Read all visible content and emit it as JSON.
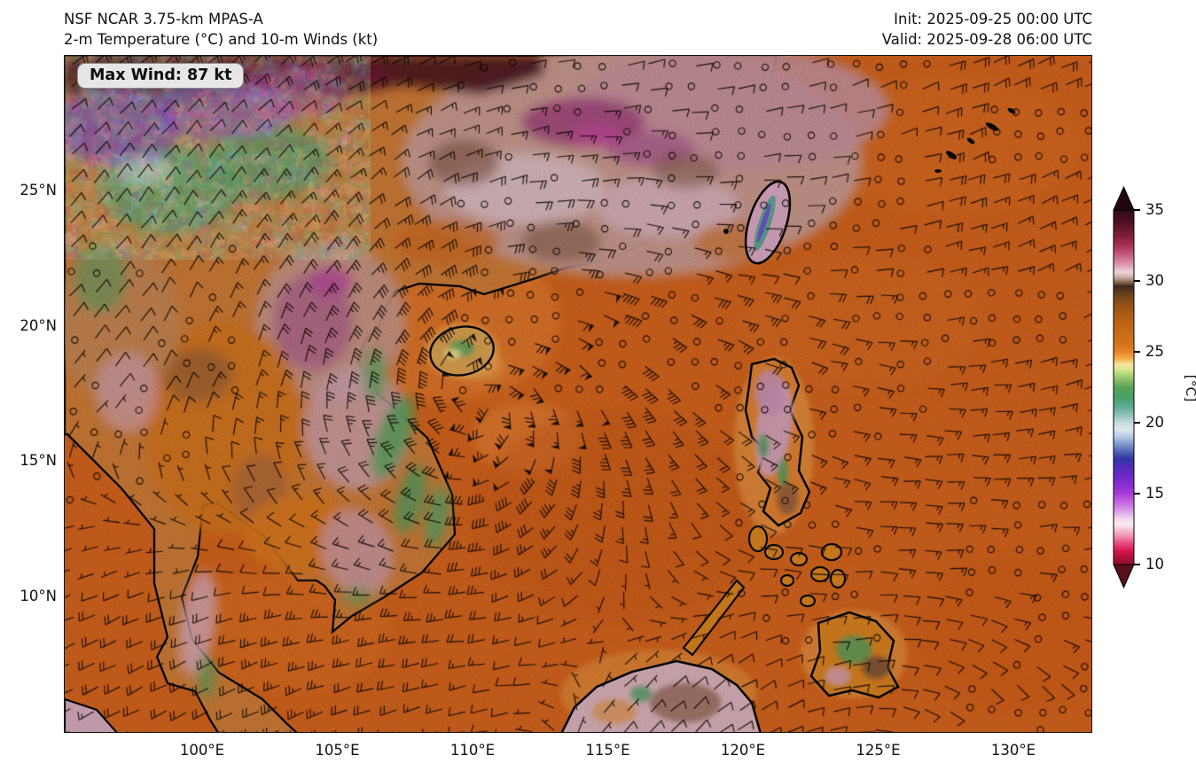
{
  "header": {
    "title_line1": "NSF NCAR 3.75-km MPAS-A",
    "title_line2": "2-m Temperature (°C) and 10-m Winds (kt)",
    "init_label": "Init: 2025-09-25 00:00 UTC",
    "valid_label": "Valid: 2025-09-28 06:00 UTC"
  },
  "map": {
    "max_wind_label": "Max Wind: 87 kt"
  },
  "axes": {
    "lat_ticks": [
      "25°N",
      "20°N",
      "15°N",
      "10°N"
    ],
    "lon_ticks": [
      "100°E",
      "105°E",
      "110°E",
      "115°E",
      "120°E",
      "125°E",
      "130°E"
    ]
  },
  "colorbar": {
    "tick_labels": [
      "35",
      "30",
      "25",
      "20",
      "15",
      "10"
    ],
    "tick_values": [
      35,
      30,
      25,
      20,
      15,
      10
    ],
    "min": 10,
    "max": 35,
    "unit_label": "[°C]",
    "extend_over_color": "#200810",
    "extend_under_color": "#58101c",
    "stops": [
      {
        "o": 0.0,
        "c": "#2e0a14"
      },
      {
        "o": 0.03,
        "c": "#4a1020"
      },
      {
        "o": 0.07,
        "c": "#7c1c38"
      },
      {
        "o": 0.1,
        "c": "#a83054"
      },
      {
        "o": 0.13,
        "c": "#c86488"
      },
      {
        "o": 0.155,
        "c": "#dc9cb0"
      },
      {
        "o": 0.175,
        "c": "#ecd4d8"
      },
      {
        "o": 0.19,
        "c": "#c8ac9c"
      },
      {
        "o": 0.205,
        "c": "#84604c"
      },
      {
        "o": 0.215,
        "c": "#3c2820"
      },
      {
        "o": 0.23,
        "c": "#5c3a1e"
      },
      {
        "o": 0.26,
        "c": "#8c4e16"
      },
      {
        "o": 0.3,
        "c": "#b05e14"
      },
      {
        "o": 0.34,
        "c": "#c66a16"
      },
      {
        "o": 0.38,
        "c": "#d4741c"
      },
      {
        "o": 0.4,
        "c": "#e88428"
      },
      {
        "o": 0.42,
        "c": "#f4b04c"
      },
      {
        "o": 0.435,
        "c": "#f4e49c"
      },
      {
        "o": 0.45,
        "c": "#d8e890"
      },
      {
        "o": 0.47,
        "c": "#a0cc70"
      },
      {
        "o": 0.5,
        "c": "#58a455"
      },
      {
        "o": 0.53,
        "c": "#48a068"
      },
      {
        "o": 0.555,
        "c": "#5caa96"
      },
      {
        "o": 0.58,
        "c": "#94c4bc"
      },
      {
        "o": 0.6,
        "c": "#c4dcdc"
      },
      {
        "o": 0.62,
        "c": "#dce8f0"
      },
      {
        "o": 0.64,
        "c": "#b4c8e4"
      },
      {
        "o": 0.66,
        "c": "#8099cc"
      },
      {
        "o": 0.685,
        "c": "#4c5cb4"
      },
      {
        "o": 0.7,
        "c": "#3438a4"
      },
      {
        "o": 0.72,
        "c": "#4c2cb4"
      },
      {
        "o": 0.75,
        "c": "#6c28c8"
      },
      {
        "o": 0.78,
        "c": "#8c30d4"
      },
      {
        "o": 0.8,
        "c": "#a83cd8"
      },
      {
        "o": 0.825,
        "c": "#c468e0"
      },
      {
        "o": 0.85,
        "c": "#dca0e8"
      },
      {
        "o": 0.87,
        "c": "#f0d4f0"
      },
      {
        "o": 0.885,
        "c": "#f8ecf2"
      },
      {
        "o": 0.9,
        "c": "#f4c8d8"
      },
      {
        "o": 0.92,
        "c": "#f090b0"
      },
      {
        "o": 0.94,
        "c": "#e84c80"
      },
      {
        "o": 0.96,
        "c": "#d81850"
      },
      {
        "o": 0.98,
        "c": "#b01038"
      },
      {
        "o": 1.0,
        "c": "#8c1030"
      }
    ]
  },
  "chart_data": {
    "type": "heatmap",
    "model": "NSF NCAR 3.75-km MPAS-A",
    "title": "2-m Temperature (°C) and 10-m Winds (kt)",
    "init": "2025-09-25 00:00 UTC",
    "valid": "2025-09-28 06:00 UTC",
    "max_wind_kt": 87,
    "colorbar_range_c": [
      10,
      35
    ],
    "colorbar_ticks_c": [
      10,
      15,
      20,
      25,
      30,
      35
    ],
    "lat_ticks_deg_n": [
      25,
      20,
      15,
      10
    ],
    "lon_ticks_deg_e": [
      100,
      105,
      110,
      115,
      120,
      125,
      130
    ]
  },
  "colors": {
    "ocean_orange": "#d2631d",
    "ocean_orange_light": "#ec8c3c",
    "ocean_orange_dark": "#c05514",
    "land_tan": "#cc7a36",
    "land_mauve": "#c79a92",
    "land_pink": "#dcb2c0",
    "land_magenta": "#a8548c",
    "land_brown": "#7c5240",
    "hot_maroon": "#4a1420",
    "veg_green": "#58a058",
    "ridge_teal": "#57a08e",
    "cold_purple": "#7a3fc0",
    "pale_yellow": "#f4e49c",
    "coast_glow": "#f2b45c",
    "barb_black": "#140b05",
    "coastline": "#0a0a0a",
    "frame": "#141414",
    "text": "#111111",
    "badge_bg": "#f2f2f2",
    "badge_border": "#8d8d8d"
  }
}
